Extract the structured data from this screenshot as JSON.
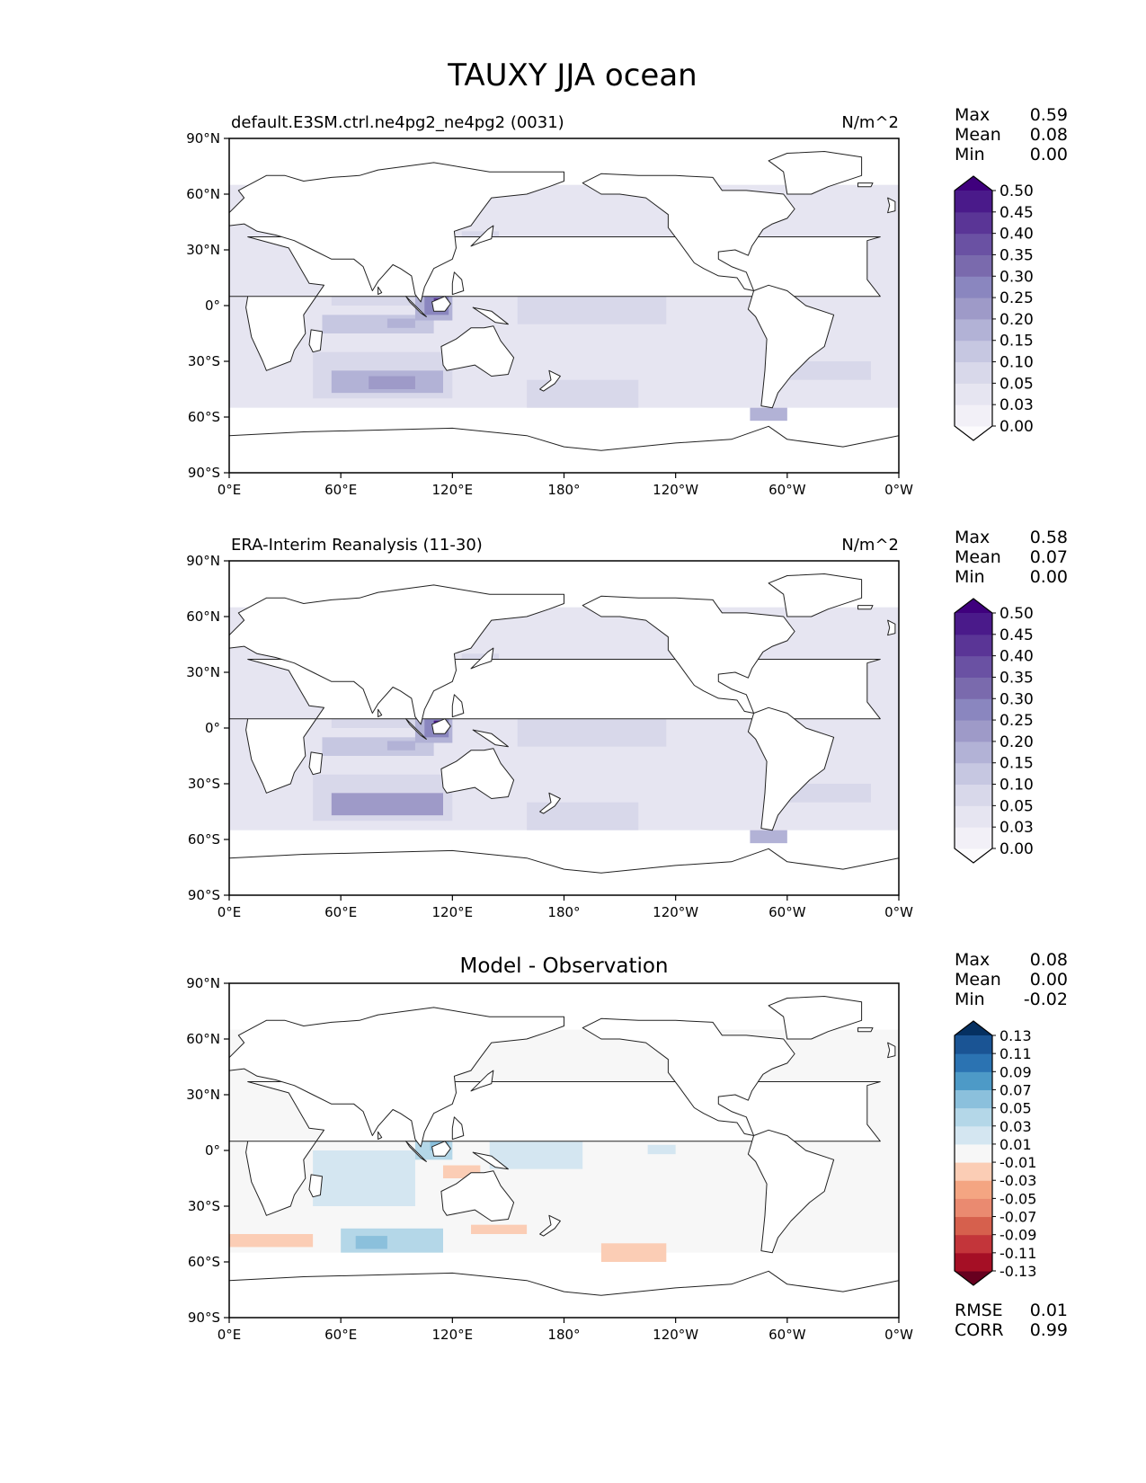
{
  "figure": {
    "title": "TAUXY JJA ocean"
  },
  "chart_data": [
    {
      "type": "heatmap",
      "panel": "model",
      "title": "default.E3SM.ctrl.ne4pg2_ne4pg2 (0031)",
      "units": "N/m^2",
      "stats": {
        "Max": "0.59",
        "Mean": "0.08",
        "Min": "0.00"
      },
      "xlabel": "",
      "ylabel": "",
      "x_ticks": [
        "0°E",
        "60°E",
        "120°E",
        "180°",
        "120°W",
        "60°W",
        "0°W"
      ],
      "y_ticks": [
        "90°N",
        "60°N",
        "30°N",
        "0°",
        "30°S",
        "60°S",
        "90°S"
      ],
      "xlim": [
        0,
        360
      ],
      "ylim": [
        -90,
        90
      ],
      "colorbar": {
        "labels": [
          "0.00",
          "0.03",
          "0.05",
          "0.10",
          "0.15",
          "0.20",
          "0.25",
          "0.30",
          "0.35",
          "0.40",
          "0.45",
          "0.50"
        ],
        "colors": [
          "#fcfbfd",
          "#f2f0f7",
          "#e6e5f1",
          "#d8d8ea",
          "#c6c7e1",
          "#b2b2d6",
          "#9e9ac8",
          "#8a86bf",
          "#7a6aad",
          "#6a51a3",
          "#5a3596",
          "#4a1a8a",
          "#3f007d"
        ]
      }
    },
    {
      "type": "heatmap",
      "panel": "observation",
      "title": "ERA-Interim Reanalysis (11-30)",
      "units": "N/m^2",
      "stats": {
        "Max": "0.58",
        "Mean": "0.07",
        "Min": "0.00"
      },
      "xlabel": "",
      "ylabel": "",
      "x_ticks": [
        "0°E",
        "60°E",
        "120°E",
        "180°",
        "120°W",
        "60°W",
        "0°W"
      ],
      "y_ticks": [
        "90°N",
        "60°N",
        "30°N",
        "0°",
        "30°S",
        "60°S",
        "90°S"
      ],
      "xlim": [
        0,
        360
      ],
      "ylim": [
        -90,
        90
      ],
      "colorbar": {
        "labels": [
          "0.00",
          "0.03",
          "0.05",
          "0.10",
          "0.15",
          "0.20",
          "0.25",
          "0.30",
          "0.35",
          "0.40",
          "0.45",
          "0.50"
        ],
        "colors": [
          "#fcfbfd",
          "#f2f0f7",
          "#e6e5f1",
          "#d8d8ea",
          "#c6c7e1",
          "#b2b2d6",
          "#9e9ac8",
          "#8a86bf",
          "#7a6aad",
          "#6a51a3",
          "#5a3596",
          "#4a1a8a",
          "#3f007d"
        ]
      }
    },
    {
      "type": "heatmap",
      "panel": "difference",
      "title": "Model - Observation",
      "units": "",
      "stats": {
        "Max": "0.08",
        "Mean": "0.00",
        "Min": "-0.02"
      },
      "metrics": {
        "RMSE": "0.01",
        "CORR": "0.99"
      },
      "xlabel": "",
      "ylabel": "",
      "x_ticks": [
        "0°E",
        "60°E",
        "120°E",
        "180°",
        "120°W",
        "60°W",
        "0°W"
      ],
      "y_ticks": [
        "90°N",
        "60°N",
        "30°N",
        "0°",
        "30°S",
        "60°S",
        "90°S"
      ],
      "xlim": [
        0,
        360
      ],
      "ylim": [
        -90,
        90
      ],
      "colorbar": {
        "labels": [
          "-0.13",
          "-0.11",
          "-0.09",
          "-0.07",
          "-0.05",
          "-0.03",
          "-0.01",
          "0.01",
          "0.03",
          "0.05",
          "0.07",
          "0.09",
          "0.11",
          "0.13"
        ],
        "colors": [
          "#67001f",
          "#a50f25",
          "#c3353a",
          "#d6604d",
          "#ea8a70",
          "#f4a582",
          "#fbcdb5",
          "#f7f7f7",
          "#d4e6f1",
          "#b4d7e8",
          "#8bc0dc",
          "#4d9ac7",
          "#2b73b2",
          "#1a5494",
          "#053061"
        ]
      }
    }
  ]
}
